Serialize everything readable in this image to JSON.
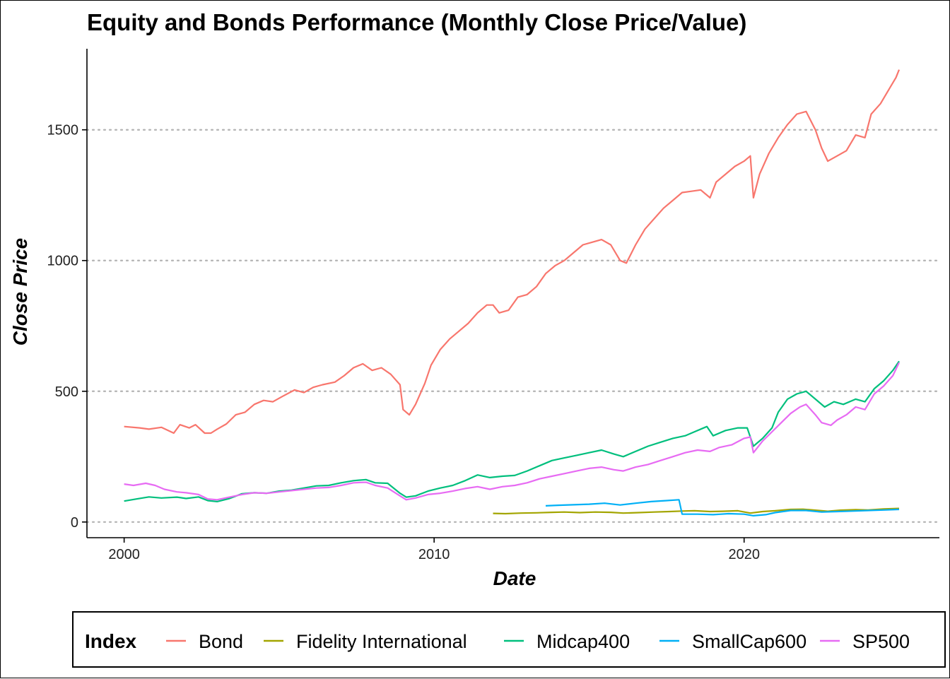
{
  "chart_data": {
    "type": "line",
    "title": "Equity and Bonds Performance (Monthly Close Price/Value)",
    "xlabel": "Date",
    "ylabel": "Close Price",
    "x_axis": {
      "ticks": [
        2000,
        2010,
        2020
      ],
      "tick_labels": [
        "2000",
        "2010",
        "2020"
      ],
      "range": [
        1998.8,
        2026.3
      ]
    },
    "y_axis": {
      "ticks": [
        0,
        500,
        1000,
        1500
      ],
      "tick_labels": [
        "0",
        "500",
        "1000",
        "1500"
      ],
      "range": [
        -60,
        1810
      ]
    },
    "grid": "horizontal-major-dotted",
    "legend": {
      "title": "Index",
      "placement": "bottom"
    },
    "series": [
      {
        "name": "Bond",
        "color": "#F8766D",
        "points": [
          [
            2000.0,
            365
          ],
          [
            2000.5,
            360
          ],
          [
            2000.8,
            355
          ],
          [
            2001.2,
            362
          ],
          [
            2001.6,
            340
          ],
          [
            2001.8,
            372
          ],
          [
            2002.1,
            360
          ],
          [
            2002.3,
            372
          ],
          [
            2002.6,
            340
          ],
          [
            2002.8,
            340
          ],
          [
            2003.0,
            355
          ],
          [
            2003.3,
            375
          ],
          [
            2003.6,
            410
          ],
          [
            2003.9,
            420
          ],
          [
            2004.2,
            450
          ],
          [
            2004.5,
            465
          ],
          [
            2004.8,
            460
          ],
          [
            2005.1,
            480
          ],
          [
            2005.5,
            505
          ],
          [
            2005.8,
            495
          ],
          [
            2006.1,
            515
          ],
          [
            2006.4,
            525
          ],
          [
            2006.8,
            535
          ],
          [
            2007.1,
            560
          ],
          [
            2007.4,
            590
          ],
          [
            2007.7,
            605
          ],
          [
            2008.0,
            580
          ],
          [
            2008.3,
            590
          ],
          [
            2008.6,
            565
          ],
          [
            2008.9,
            525
          ],
          [
            2009.0,
            430
          ],
          [
            2009.2,
            410
          ],
          [
            2009.4,
            450
          ],
          [
            2009.7,
            530
          ],
          [
            2009.9,
            600
          ],
          [
            2010.2,
            660
          ],
          [
            2010.5,
            700
          ],
          [
            2010.8,
            730
          ],
          [
            2011.1,
            760
          ],
          [
            2011.4,
            800
          ],
          [
            2011.7,
            830
          ],
          [
            2011.9,
            830
          ],
          [
            2012.1,
            800
          ],
          [
            2012.4,
            810
          ],
          [
            2012.7,
            860
          ],
          [
            2013.0,
            870
          ],
          [
            2013.3,
            900
          ],
          [
            2013.6,
            950
          ],
          [
            2013.9,
            980
          ],
          [
            2014.2,
            1000
          ],
          [
            2014.5,
            1030
          ],
          [
            2014.8,
            1060
          ],
          [
            2015.1,
            1070
          ],
          [
            2015.4,
            1080
          ],
          [
            2015.7,
            1060
          ],
          [
            2016.0,
            1000
          ],
          [
            2016.2,
            990
          ],
          [
            2016.5,
            1060
          ],
          [
            2016.8,
            1120
          ],
          [
            2017.1,
            1160
          ],
          [
            2017.4,
            1200
          ],
          [
            2017.7,
            1230
          ],
          [
            2018.0,
            1260
          ],
          [
            2018.3,
            1265
          ],
          [
            2018.6,
            1270
          ],
          [
            2018.9,
            1240
          ],
          [
            2019.1,
            1300
          ],
          [
            2019.4,
            1330
          ],
          [
            2019.7,
            1360
          ],
          [
            2020.0,
            1380
          ],
          [
            2020.2,
            1400
          ],
          [
            2020.3,
            1240
          ],
          [
            2020.5,
            1330
          ],
          [
            2020.8,
            1410
          ],
          [
            2021.1,
            1470
          ],
          [
            2021.4,
            1520
          ],
          [
            2021.7,
            1560
          ],
          [
            2022.0,
            1570
          ],
          [
            2022.3,
            1500
          ],
          [
            2022.5,
            1430
          ],
          [
            2022.7,
            1380
          ],
          [
            2023.0,
            1400
          ],
          [
            2023.3,
            1420
          ],
          [
            2023.6,
            1480
          ],
          [
            2023.9,
            1470
          ],
          [
            2024.1,
            1560
          ],
          [
            2024.4,
            1600
          ],
          [
            2024.7,
            1660
          ],
          [
            2024.9,
            1700
          ],
          [
            2025.0,
            1730
          ]
        ]
      },
      {
        "name": "Fidelity International",
        "color": "#A3A500",
        "points": [
          [
            2011.9,
            33
          ],
          [
            2012.3,
            32
          ],
          [
            2012.8,
            34
          ],
          [
            2013.3,
            35
          ],
          [
            2013.8,
            37
          ],
          [
            2014.2,
            38
          ],
          [
            2014.7,
            36
          ],
          [
            2015.2,
            38
          ],
          [
            2015.7,
            37
          ],
          [
            2016.1,
            34
          ],
          [
            2016.6,
            36
          ],
          [
            2017.1,
            38
          ],
          [
            2017.6,
            40
          ],
          [
            2018.0,
            42
          ],
          [
            2018.4,
            43
          ],
          [
            2018.9,
            40
          ],
          [
            2019.3,
            41
          ],
          [
            2019.8,
            43
          ],
          [
            2020.2,
            34
          ],
          [
            2020.6,
            40
          ],
          [
            2021.0,
            43
          ],
          [
            2021.5,
            48
          ],
          [
            2021.9,
            49
          ],
          [
            2022.3,
            45
          ],
          [
            2022.7,
            41
          ],
          [
            2023.1,
            45
          ],
          [
            2023.6,
            47
          ],
          [
            2024.0,
            46
          ],
          [
            2024.5,
            50
          ],
          [
            2025.0,
            52
          ]
        ]
      },
      {
        "name": "Midcap400",
        "color": "#00BF7D",
        "points": [
          [
            2000.0,
            80
          ],
          [
            2000.4,
            88
          ],
          [
            2000.8,
            96
          ],
          [
            2001.2,
            92
          ],
          [
            2001.7,
            95
          ],
          [
            2002.0,
            90
          ],
          [
            2002.4,
            96
          ],
          [
            2002.7,
            82
          ],
          [
            2003.0,
            78
          ],
          [
            2003.4,
            90
          ],
          [
            2003.8,
            108
          ],
          [
            2004.2,
            112
          ],
          [
            2004.6,
            110
          ],
          [
            2005.0,
            118
          ],
          [
            2005.4,
            122
          ],
          [
            2005.8,
            130
          ],
          [
            2006.2,
            138
          ],
          [
            2006.6,
            140
          ],
          [
            2007.0,
            150
          ],
          [
            2007.4,
            158
          ],
          [
            2007.8,
            162
          ],
          [
            2008.1,
            150
          ],
          [
            2008.5,
            148
          ],
          [
            2008.9,
            110
          ],
          [
            2009.1,
            95
          ],
          [
            2009.4,
            100
          ],
          [
            2009.8,
            118
          ],
          [
            2010.2,
            130
          ],
          [
            2010.6,
            140
          ],
          [
            2011.0,
            158
          ],
          [
            2011.4,
            180
          ],
          [
            2011.8,
            170
          ],
          [
            2012.2,
            175
          ],
          [
            2012.6,
            178
          ],
          [
            2013.0,
            195
          ],
          [
            2013.4,
            215
          ],
          [
            2013.8,
            235
          ],
          [
            2014.2,
            245
          ],
          [
            2014.6,
            255
          ],
          [
            2015.0,
            265
          ],
          [
            2015.4,
            275
          ],
          [
            2015.8,
            260
          ],
          [
            2016.1,
            250
          ],
          [
            2016.5,
            270
          ],
          [
            2016.9,
            290
          ],
          [
            2017.3,
            305
          ],
          [
            2017.7,
            320
          ],
          [
            2018.1,
            330
          ],
          [
            2018.4,
            345
          ],
          [
            2018.8,
            365
          ],
          [
            2019.0,
            330
          ],
          [
            2019.4,
            350
          ],
          [
            2019.8,
            360
          ],
          [
            2020.1,
            360
          ],
          [
            2020.3,
            290
          ],
          [
            2020.6,
            320
          ],
          [
            2020.9,
            360
          ],
          [
            2021.1,
            420
          ],
          [
            2021.4,
            470
          ],
          [
            2021.7,
            490
          ],
          [
            2022.0,
            500
          ],
          [
            2022.3,
            470
          ],
          [
            2022.6,
            440
          ],
          [
            2022.9,
            460
          ],
          [
            2023.2,
            450
          ],
          [
            2023.6,
            470
          ],
          [
            2023.9,
            460
          ],
          [
            2024.2,
            510
          ],
          [
            2024.5,
            540
          ],
          [
            2024.8,
            580
          ],
          [
            2025.0,
            615
          ]
        ]
      },
      {
        "name": "SmallCap600",
        "color": "#00B0F6",
        "points": [
          [
            2013.6,
            62
          ],
          [
            2014.0,
            64
          ],
          [
            2014.5,
            66
          ],
          [
            2015.0,
            68
          ],
          [
            2015.5,
            72
          ],
          [
            2016.0,
            65
          ],
          [
            2016.5,
            72
          ],
          [
            2017.0,
            78
          ],
          [
            2017.5,
            82
          ],
          [
            2017.9,
            85
          ],
          [
            2018.0,
            30
          ],
          [
            2018.5,
            30
          ],
          [
            2019.0,
            28
          ],
          [
            2019.5,
            32
          ],
          [
            2020.0,
            30
          ],
          [
            2020.3,
            24
          ],
          [
            2020.7,
            28
          ],
          [
            2021.0,
            36
          ],
          [
            2021.5,
            44
          ],
          [
            2022.0,
            44
          ],
          [
            2022.5,
            38
          ],
          [
            2023.0,
            40
          ],
          [
            2023.5,
            42
          ],
          [
            2024.0,
            44
          ],
          [
            2024.5,
            46
          ],
          [
            2025.0,
            48
          ]
        ]
      },
      {
        "name": "SP500",
        "color": "#E76BF3",
        "points": [
          [
            2000.0,
            145
          ],
          [
            2000.3,
            140
          ],
          [
            2000.7,
            148
          ],
          [
            2001.0,
            140
          ],
          [
            2001.3,
            125
          ],
          [
            2001.7,
            115
          ],
          [
            2002.0,
            112
          ],
          [
            2002.4,
            105
          ],
          [
            2002.7,
            88
          ],
          [
            2003.0,
            85
          ],
          [
            2003.4,
            95
          ],
          [
            2003.8,
            105
          ],
          [
            2004.2,
            112
          ],
          [
            2004.6,
            110
          ],
          [
            2005.0,
            115
          ],
          [
            2005.4,
            120
          ],
          [
            2005.8,
            125
          ],
          [
            2006.2,
            130
          ],
          [
            2006.6,
            132
          ],
          [
            2007.0,
            140
          ],
          [
            2007.4,
            150
          ],
          [
            2007.8,
            152
          ],
          [
            2008.1,
            140
          ],
          [
            2008.5,
            130
          ],
          [
            2008.9,
            100
          ],
          [
            2009.1,
            85
          ],
          [
            2009.4,
            92
          ],
          [
            2009.8,
            105
          ],
          [
            2010.2,
            110
          ],
          [
            2010.6,
            118
          ],
          [
            2011.0,
            128
          ],
          [
            2011.4,
            135
          ],
          [
            2011.8,
            125
          ],
          [
            2012.2,
            135
          ],
          [
            2012.6,
            140
          ],
          [
            2013.0,
            150
          ],
          [
            2013.4,
            165
          ],
          [
            2013.8,
            175
          ],
          [
            2014.2,
            185
          ],
          [
            2014.6,
            195
          ],
          [
            2015.0,
            205
          ],
          [
            2015.4,
            210
          ],
          [
            2015.8,
            200
          ],
          [
            2016.1,
            195
          ],
          [
            2016.5,
            210
          ],
          [
            2016.9,
            220
          ],
          [
            2017.3,
            235
          ],
          [
            2017.7,
            250
          ],
          [
            2018.1,
            265
          ],
          [
            2018.5,
            275
          ],
          [
            2018.9,
            270
          ],
          [
            2019.2,
            285
          ],
          [
            2019.6,
            295
          ],
          [
            2020.0,
            320
          ],
          [
            2020.2,
            325
          ],
          [
            2020.3,
            265
          ],
          [
            2020.6,
            310
          ],
          [
            2020.9,
            345
          ],
          [
            2021.2,
            380
          ],
          [
            2021.5,
            415
          ],
          [
            2021.8,
            440
          ],
          [
            2022.0,
            450
          ],
          [
            2022.3,
            410
          ],
          [
            2022.5,
            380
          ],
          [
            2022.8,
            370
          ],
          [
            2023.0,
            390
          ],
          [
            2023.3,
            410
          ],
          [
            2023.6,
            440
          ],
          [
            2023.9,
            430
          ],
          [
            2024.2,
            490
          ],
          [
            2024.5,
            520
          ],
          [
            2024.8,
            560
          ],
          [
            2025.0,
            610
          ]
        ]
      }
    ]
  }
}
